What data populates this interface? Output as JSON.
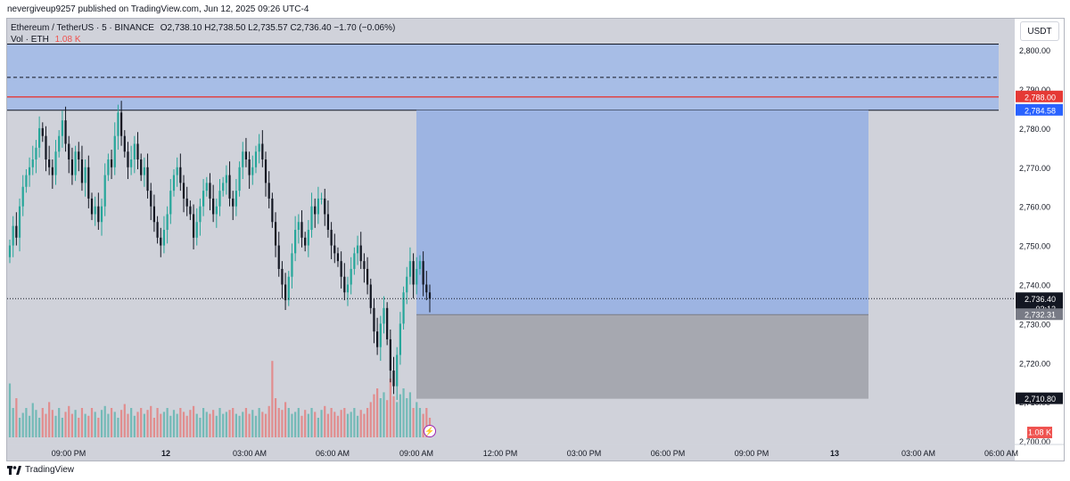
{
  "header": {
    "publish_line": "nevergiveup9257 published on TradingView.com, Jun 12, 2025 09:26 UTC-4"
  },
  "legend": {
    "symbol": "Ethereum / TetherUS · 5 · BINANCE",
    "ohlc": "O2,738.10  H2,738.50  L2,735.57  C2,736.40  −1.70 (−0.06%)",
    "volume_label": "Vol · ETH",
    "volume_value": "1.08 K"
  },
  "currency_button": "USDT",
  "footer": {
    "brand": "TradingView"
  },
  "colors": {
    "up": "#26a69a",
    "down": "#131722",
    "zone_blue": "#a7bde6",
    "profit_blue": "#9db4e2",
    "loss_gray": "#a6a8b0",
    "red_line": "#e53935",
    "bg": "#d0d2da"
  },
  "chart_data": {
    "type": "candlestick",
    "symbol": "ETHUSDT",
    "interval": "5",
    "ylim": [
      2695,
      2808
    ],
    "y_ticks": [
      2700,
      2710,
      2720,
      2730,
      2740,
      2750,
      2760,
      2770,
      2780,
      2790,
      2800
    ],
    "y_tick_labels": [
      "2,700.00",
      "2,710.00",
      "2,720.00",
      "2,730.00",
      "2,740.00",
      "2,750.00",
      "2,760.00",
      "2,770.00",
      "2,780.00",
      "2,790.00",
      "2,800.00"
    ],
    "x_tick_labels": [
      "09:00 PM",
      "12",
      "03:00 AM",
      "06:00 AM",
      "09:00 AM",
      "12:00 PM",
      "03:00 PM",
      "06:00 PM",
      "09:00 PM",
      "13",
      "03:00 AM",
      "06:00 AM"
    ],
    "price_labels": [
      {
        "text": "2,788.00",
        "value": 2788.0,
        "color": "#e53935"
      },
      {
        "text": "2,784.58",
        "value": 2784.58,
        "color": "#2962ff"
      },
      {
        "text": "2,736.40",
        "value": 2736.4,
        "color": "#131722"
      },
      {
        "text": "03:12",
        "value": 2733.9,
        "color": "#131722"
      },
      {
        "text": "2,732.31",
        "value": 2732.31,
        "color": "#787b86"
      },
      {
        "text": "2,710.80",
        "value": 2710.8,
        "color": "#131722"
      }
    ],
    "volume_badge": "1.08 K",
    "supply_zone": {
      "top": 2801.5,
      "bottom": 2784.58,
      "dashed_level": 2793,
      "red_level": 2788.0
    },
    "position": {
      "entry": 2732.31,
      "target": 2784.58,
      "stop": 2710.8
    },
    "current_price": 2736.4,
    "candles_close": [
      2750,
      2755,
      2752,
      2760,
      2765,
      2768,
      2770,
      2772,
      2775,
      2780,
      2778,
      2772,
      2770,
      2768,
      2774,
      2778,
      2782,
      2776,
      2772,
      2768,
      2774,
      2772,
      2766,
      2770,
      2762,
      2758,
      2760,
      2756,
      2760,
      2768,
      2772,
      2770,
      2778,
      2784,
      2778,
      2774,
      2770,
      2772,
      2776,
      2772,
      2768,
      2770,
      2764,
      2760,
      2756,
      2752,
      2750,
      2754,
      2758,
      2764,
      2768,
      2770,
      2766,
      2762,
      2760,
      2758,
      2752,
      2756,
      2760,
      2764,
      2766,
      2762,
      2758,
      2760,
      2764,
      2766,
      2768,
      2762,
      2760,
      2764,
      2770,
      2774,
      2772,
      2768,
      2770,
      2774,
      2776,
      2772,
      2766,
      2762,
      2756,
      2750,
      2744,
      2740,
      2736,
      2742,
      2748,
      2754,
      2756,
      2752,
      2750,
      2754,
      2760,
      2758,
      2762,
      2762,
      2758,
      2754,
      2750,
      2748,
      2746,
      2742,
      2738,
      2740,
      2744,
      2748,
      2750,
      2746,
      2744,
      2740,
      2734,
      2728,
      2724,
      2730,
      2734,
      2726,
      2718,
      2714,
      2722,
      2730,
      2738,
      2742,
      2746,
      2740,
      2744,
      2746,
      2740,
      2738,
      2736.4
    ],
    "volumes": [
      0.55,
      0.3,
      0.4,
      0.2,
      0.25,
      0.3,
      0.22,
      0.35,
      0.28,
      0.2,
      0.3,
      0.24,
      0.36,
      0.28,
      0.22,
      0.3,
      0.2,
      0.26,
      0.32,
      0.24,
      0.28,
      0.2,
      0.3,
      0.24,
      0.22,
      0.3,
      0.26,
      0.2,
      0.28,
      0.32,
      0.24,
      0.3,
      0.26,
      0.2,
      0.28,
      0.34,
      0.24,
      0.3,
      0.22,
      0.26,
      0.3,
      0.24,
      0.28,
      0.32,
      0.2,
      0.3,
      0.24,
      0.26,
      0.3,
      0.22,
      0.28,
      0.24,
      0.3,
      0.26,
      0.22,
      0.28,
      0.32,
      0.24,
      0.2,
      0.3,
      0.26,
      0.24,
      0.28,
      0.22,
      0.3,
      0.24,
      0.26,
      0.28,
      0.3,
      0.24,
      0.22,
      0.26,
      0.3,
      0.24,
      0.28,
      0.22,
      0.3,
      0.26,
      0.24,
      0.32,
      0.78,
      0.4,
      0.3,
      0.28,
      0.36,
      0.3,
      0.24,
      0.26,
      0.3,
      0.22,
      0.28,
      0.24,
      0.3,
      0.26,
      0.2,
      0.28,
      0.32,
      0.24,
      0.3,
      0.26,
      0.22,
      0.28,
      0.3,
      0.24,
      0.26,
      0.3,
      0.22,
      0.28,
      0.24,
      0.3,
      0.36,
      0.44,
      0.5,
      0.4,
      0.46,
      0.38,
      0.6,
      0.42,
      0.36,
      0.44,
      0.5,
      0.4,
      0.46,
      0.3,
      0.36,
      0.3,
      0.24,
      0.3,
      0.2
    ]
  }
}
